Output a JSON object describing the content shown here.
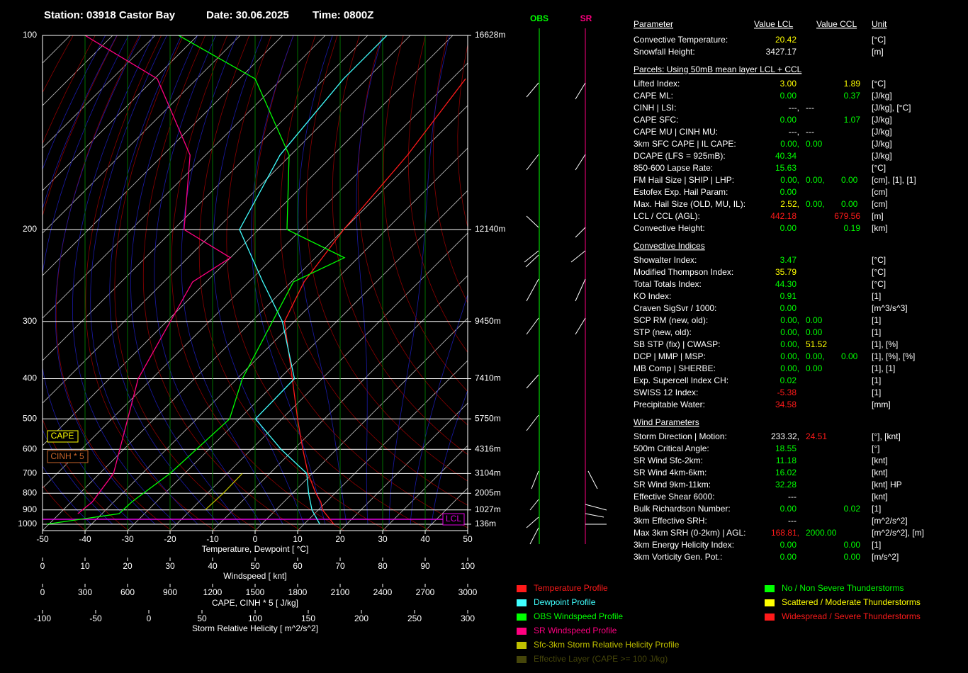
{
  "header": {
    "station": "Station: 03918 Castor Bay",
    "date": "Date: 30.06.2025",
    "time": "Time: 0800Z"
  },
  "chart_data": {
    "type": "skewt",
    "ylim": [
      100,
      1050
    ],
    "yticks": [
      100,
      200,
      300,
      400,
      500,
      600,
      700,
      800,
      900,
      1000
    ],
    "height_labels": [
      "16628m",
      "12140m",
      "9450m",
      "7410m",
      "5750m",
      "4316m",
      "3104m",
      "2005m",
      "1027m",
      "136m"
    ],
    "xlim": [
      -50,
      50
    ],
    "xticks": [
      -50,
      -40,
      -30,
      -20,
      -10,
      0,
      10,
      20,
      30,
      40,
      50
    ],
    "xlabel": "Temperature, Dewpoint [ °C]",
    "wind_axis": {
      "label": "Windspeed [ knt]",
      "xlim": [
        0,
        100
      ],
      "xticks": [
        0,
        10,
        20,
        30,
        40,
        50,
        60,
        70,
        80,
        90,
        100
      ]
    },
    "cape_axis": {
      "label": "CAPE, CINH * 5 [ J/kg]",
      "xlim": [
        0,
        3000
      ],
      "xticks": [
        0,
        300,
        600,
        900,
        1200,
        1500,
        1800,
        2100,
        2400,
        2700,
        3000
      ]
    },
    "srh_axis": {
      "label": "Storm Relative Helicity [ m^2/s^2]",
      "xlim": [
        -100,
        300
      ],
      "xticks": [
        -100,
        -50,
        0,
        50,
        100,
        150,
        200,
        250,
        300
      ]
    },
    "wind_columns": {
      "obs": "OBS",
      "sr": "SR"
    },
    "annotations": {
      "cape": "CAPE",
      "cinh": "CINH * 5",
      "lcl": "LCL"
    },
    "series": [
      {
        "name": "Temperature Profile",
        "color": "#ff1a1a",
        "axis": "temperature",
        "pressure": [
          1000,
          900,
          850,
          800,
          700,
          600,
          500,
          400,
          300,
          250,
          200,
          150,
          115
        ],
        "values": [
          17,
          11,
          8.7,
          5.5,
          -1,
          -7.9,
          -16.3,
          -27,
          -42.3,
          -47,
          -50,
          -52.5,
          -56.8
        ]
      },
      {
        "name": "Dewpoint Profile",
        "color": "#40ffff",
        "axis": "temperature",
        "pressure": [
          1000,
          900,
          800,
          700,
          600,
          500,
          400,
          300,
          250,
          200,
          150,
          115,
          100
        ],
        "values": [
          13.7,
          8.5,
          3.8,
          -1.3,
          -13,
          -26.2,
          -26.5,
          -42.8,
          -56.7,
          -74.5,
          -82.5,
          -85.5,
          -85.5
        ]
      },
      {
        "name": "OBS Windspeed Profile",
        "color": "#00ff00",
        "axis": "wind",
        "pressure": [
          1000,
          925,
          850,
          700,
          500,
          400,
          250,
          225,
          200,
          150,
          115,
          100
        ],
        "values": [
          1,
          18,
          21,
          30,
          44,
          47,
          59,
          71,
          57.5,
          58,
          50,
          32
        ]
      },
      {
        "name": "SR Windspeed Profile",
        "color": "#ff0080",
        "axis": "wind",
        "pressure": [
          925,
          850,
          700,
          400,
          250,
          225,
          200,
          150,
          115,
          100
        ],
        "values": [
          8.3,
          11.7,
          16.7,
          22.5,
          35.3,
          44.2,
          33.3,
          34.7,
          27,
          10
        ]
      },
      {
        "name": "Sfc-3km Storm Relative Helicity Profile",
        "color": "#c0c000",
        "axis": "srh",
        "pressure": [
          900,
          800,
          700
        ],
        "values": [
          53,
          70,
          88
        ]
      }
    ],
    "extra_legend": [
      {
        "name": "Effective Layer (CAPE >= 100 J/kg)",
        "color": "#45450a"
      }
    ],
    "severity_legend": [
      {
        "name": "No / Non Severe Thunderstorms",
        "color": "#00ff00"
      },
      {
        "name": "Scattered / Moderate Thunderstorms",
        "color": "#ffff00"
      },
      {
        "name": "Widespread / Severe Thunderstorms",
        "color": "#ff1a1a"
      }
    ]
  },
  "table": {
    "header": [
      "Parameter",
      "Value LCL",
      "Value CCL",
      "Unit"
    ],
    "sections": [
      {
        "rows": [
          {
            "label": "Convective Temperature:",
            "lcl": [
              {
                "text": "20.42",
                "color": "#ffff00"
              }
            ],
            "unit": "[°C]"
          },
          {
            "label": "Snowfall Height:",
            "lcl": [
              {
                "text": "3427.17",
                "color": "#ffffff"
              }
            ],
            "unit": "[m]"
          }
        ]
      },
      {
        "title": "Parcels: Using 50mB mean layer LCL + CCL",
        "rows": [
          {
            "label": "Lifted Index:",
            "lcl": [
              {
                "text": "3.00",
                "color": "#ffff00"
              }
            ],
            "ccl": {
              "text": "1.89",
              "color": "#ffff00"
            },
            "unit": "[°C]"
          },
          {
            "label": "CAPE ML:",
            "lcl": [
              {
                "text": "0.00",
                "color": "#00ff00"
              }
            ],
            "ccl": {
              "text": "0.37",
              "color": "#00ff00"
            },
            "unit": "[J/kg]"
          },
          {
            "label": "CINH | LSI:",
            "lcl": [
              {
                "text": "---,",
                "color": "#ffffff"
              },
              {
                "text": "---",
                "color": "#ffffff"
              }
            ],
            "unit": "[J/kg], [°C]"
          },
          {
            "label": "CAPE SFC:",
            "lcl": [
              {
                "text": "0.00",
                "color": "#00ff00"
              }
            ],
            "ccl": {
              "text": "1.07",
              "color": "#00ff00"
            },
            "unit": "[J/kg]"
          },
          {
            "label": "CAPE MU | CINH MU:",
            "lcl": [
              {
                "text": "---,",
                "color": "#ffffff"
              },
              {
                "text": "---",
                "color": "#ffffff"
              }
            ],
            "unit": "[J/kg]"
          },
          {
            "label": "3km SFC CAPE | IL CAPE:",
            "lcl": [
              {
                "text": "0.00,",
                "color": "#00ff00"
              },
              {
                "text": "0.00",
                "color": "#00ff00"
              }
            ],
            "unit": "[J/kg]"
          },
          {
            "label": "DCAPE (LFS = 925mB):",
            "lcl": [
              {
                "text": "40.34",
                "color": "#00ff00"
              }
            ],
            "unit": "[J/kg]"
          },
          {
            "label": "850-600 Lapse Rate:",
            "lcl": [
              {
                "text": "15.63",
                "color": "#00ff00"
              }
            ],
            "unit": "[°C]"
          },
          {
            "label": "FM Hail Size | SHIP | LHP:",
            "lcl": [
              {
                "text": "0.00,",
                "color": "#00ff00"
              },
              {
                "text": "0.00,",
                "color": "#00ff00"
              },
              {
                "text": "0.00",
                "color": "#00ff00"
              }
            ],
            "unit": "[cm], [1], [1]"
          },
          {
            "label": "Estofex Exp. Hail Param:",
            "lcl": [
              {
                "text": "0.00",
                "color": "#00ff00"
              }
            ],
            "unit": "[cm]"
          },
          {
            "label": "Max. Hail Size (OLD, MU, IL):",
            "lcl": [
              {
                "text": "2.52,",
                "color": "#ffff00"
              },
              {
                "text": "0.00,",
                "color": "#00ff00"
              },
              {
                "text": "0.00",
                "color": "#00ff00"
              }
            ],
            "unit": "[cm]"
          },
          {
            "label": "LCL / CCL (AGL):",
            "lcl": [
              {
                "text": "442.18",
                "color": "#ff1a1a"
              }
            ],
            "ccl": {
              "text": "679.56",
              "color": "#ff1a1a"
            },
            "unit": "[m]"
          },
          {
            "label": "Convective Height:",
            "lcl": [
              {
                "text": "0.00",
                "color": "#00ff00"
              }
            ],
            "ccl": {
              "text": "0.19",
              "color": "#00ff00"
            },
            "unit": "[km]"
          }
        ]
      },
      {
        "title": "Convective Indices",
        "rows": [
          {
            "label": "Showalter Index:",
            "lcl": [
              {
                "text": "3.47",
                "color": "#00ff00"
              }
            ],
            "unit": "[°C]"
          },
          {
            "label": "Modified Thompson Index:",
            "lcl": [
              {
                "text": "35.79",
                "color": "#ffff00"
              }
            ],
            "unit": "[°C]"
          },
          {
            "label": "Total Totals Index:",
            "lcl": [
              {
                "text": "44.30",
                "color": "#00ff00"
              }
            ],
            "unit": "[°C]"
          },
          {
            "label": "KO Index:",
            "lcl": [
              {
                "text": "0.91",
                "color": "#00ff00"
              }
            ],
            "unit": "[1]"
          },
          {
            "label": "Craven SigSvr / 1000:",
            "lcl": [
              {
                "text": "0.00",
                "color": "#00ff00"
              }
            ],
            "unit": "[m^3/s^3]"
          },
          {
            "label": "SCP RM (new, old):",
            "lcl": [
              {
                "text": "0.00,",
                "color": "#00ff00"
              },
              {
                "text": "0.00",
                "color": "#00ff00"
              }
            ],
            "unit": "[1]"
          },
          {
            "label": "STP (new, old):",
            "lcl": [
              {
                "text": "0.00,",
                "color": "#00ff00"
              },
              {
                "text": "0.00",
                "color": "#00ff00"
              }
            ],
            "unit": "[1]"
          },
          {
            "label": "SB STP (fix) | CWASP:",
            "lcl": [
              {
                "text": "0.00,",
                "color": "#00ff00"
              },
              {
                "text": "51.52",
                "color": "#ffff00"
              }
            ],
            "unit": "[1], [%]"
          },
          {
            "label": "DCP | MMP | MSP:",
            "lcl": [
              {
                "text": "0.00,",
                "color": "#00ff00"
              },
              {
                "text": "0.00,",
                "color": "#00ff00"
              },
              {
                "text": "0.00",
                "color": "#00ff00"
              }
            ],
            "unit": "[1], [%], [%]"
          },
          {
            "label": "MB Comp | SHERBE:",
            "lcl": [
              {
                "text": "0.00,",
                "color": "#00ff00"
              },
              {
                "text": "0.00",
                "color": "#00ff00"
              }
            ],
            "unit": "[1], [1]"
          },
          {
            "label": "Exp. Supercell Index CH:",
            "lcl": [
              {
                "text": "0.02",
                "color": "#00ff00"
              }
            ],
            "unit": "[1]"
          },
          {
            "label": "SWISS 12 Index:",
            "lcl": [
              {
                "text": "-5.38",
                "color": "#ff1a1a"
              }
            ],
            "unit": "[1]"
          },
          {
            "label": "Precipitable Water:",
            "lcl": [
              {
                "text": "34.58",
                "color": "#ff1a1a"
              }
            ],
            "unit": "[mm]"
          }
        ]
      },
      {
        "title": "Wind Parameters",
        "rows": [
          {
            "label": "Storm Direction | Motion:",
            "lcl": [
              {
                "text": "233.32,",
                "color": "#ffffff"
              },
              {
                "text": "24.51",
                "color": "#ff1a1a"
              }
            ],
            "unit": "[°], [knt]"
          },
          {
            "label": "500m Critical Angle:",
            "lcl": [
              {
                "text": "18.55",
                "color": "#00ff00"
              }
            ],
            "unit": "[°]"
          },
          {
            "label": "SR Wind Sfc-2km:",
            "lcl": [
              {
                "text": "11.18",
                "color": "#00ff00"
              }
            ],
            "unit": "[knt]"
          },
          {
            "label": "SR Wind 4km-6km:",
            "lcl": [
              {
                "text": "16.02",
                "color": "#00ff00"
              }
            ],
            "unit": "[knt]"
          },
          {
            "label": "SR Wind 9km-11km:",
            "lcl": [
              {
                "text": "32.28",
                "color": "#00ff00"
              }
            ],
            "unit": "[knt] HP"
          },
          {
            "label": "Effective Shear 6000:",
            "lcl": [
              {
                "text": "---",
                "color": "#ffffff"
              }
            ],
            "unit": "[knt]"
          },
          {
            "label": "Bulk Richardson Number:",
            "lcl": [
              {
                "text": "0.00",
                "color": "#00ff00"
              }
            ],
            "ccl": {
              "text": "0.02",
              "color": "#00ff00"
            },
            "unit": "[1]"
          },
          {
            "label": "3km Effective SRH:",
            "lcl": [
              {
                "text": "---",
                "color": "#ffffff"
              }
            ],
            "unit": "[m^2/s^2]"
          },
          {
            "label": "Max 3km SRH (0-2km) | AGL:",
            "lcl": [
              {
                "text": "168.81,",
                "color": "#ff1a1a"
              },
              {
                "text": "2000.00",
                "color": "#00ff00"
              }
            ],
            "unit": "[m^2/s^2], [m]"
          },
          {
            "label": "3km Energy Helicity Index:",
            "lcl": [
              {
                "text": "0.00",
                "color": "#00ff00"
              }
            ],
            "ccl": {
              "text": "0.00",
              "color": "#00ff00"
            },
            "unit": "[1]"
          },
          {
            "label": "3km Vorticity Gen. Pot.:",
            "lcl": [
              {
                "text": "0.00",
                "color": "#00ff00"
              }
            ],
            "ccl": {
              "text": "0.00",
              "color": "#00ff00"
            },
            "unit": "[m/s^2]"
          }
        ]
      }
    ]
  }
}
